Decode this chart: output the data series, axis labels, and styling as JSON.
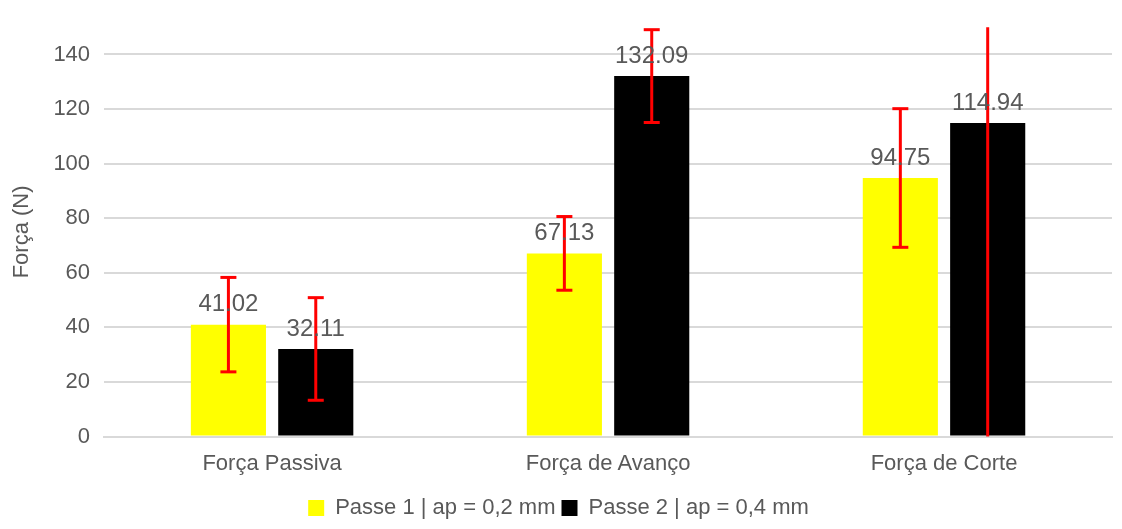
{
  "chart_data": {
    "type": "bar",
    "ylabel": "Força (N)",
    "categories": [
      "Força Passiva",
      "Força de Avanço",
      "Força de Corte"
    ],
    "series": [
      {
        "name": "Passe 1 | ap = 0,2 mm",
        "color": "#ffff00",
        "values": [
          41.02,
          67.13,
          94.75
        ],
        "errors": [
          17.3,
          13.5,
          25.4
        ]
      },
      {
        "name": "Passe 2 | ap = 0,4 mm",
        "color": "#000000",
        "values": [
          32.11,
          132.09,
          114.94
        ],
        "errors": [
          18.8,
          17,
          [
            0,
            150
          ]
        ]
      }
    ],
    "ylim": [
      0,
      150
    ],
    "yticks": [
      0,
      20,
      40,
      60,
      80,
      100,
      120,
      140
    ],
    "grid": "y",
    "legend": "bottom",
    "data_labels": true
  }
}
